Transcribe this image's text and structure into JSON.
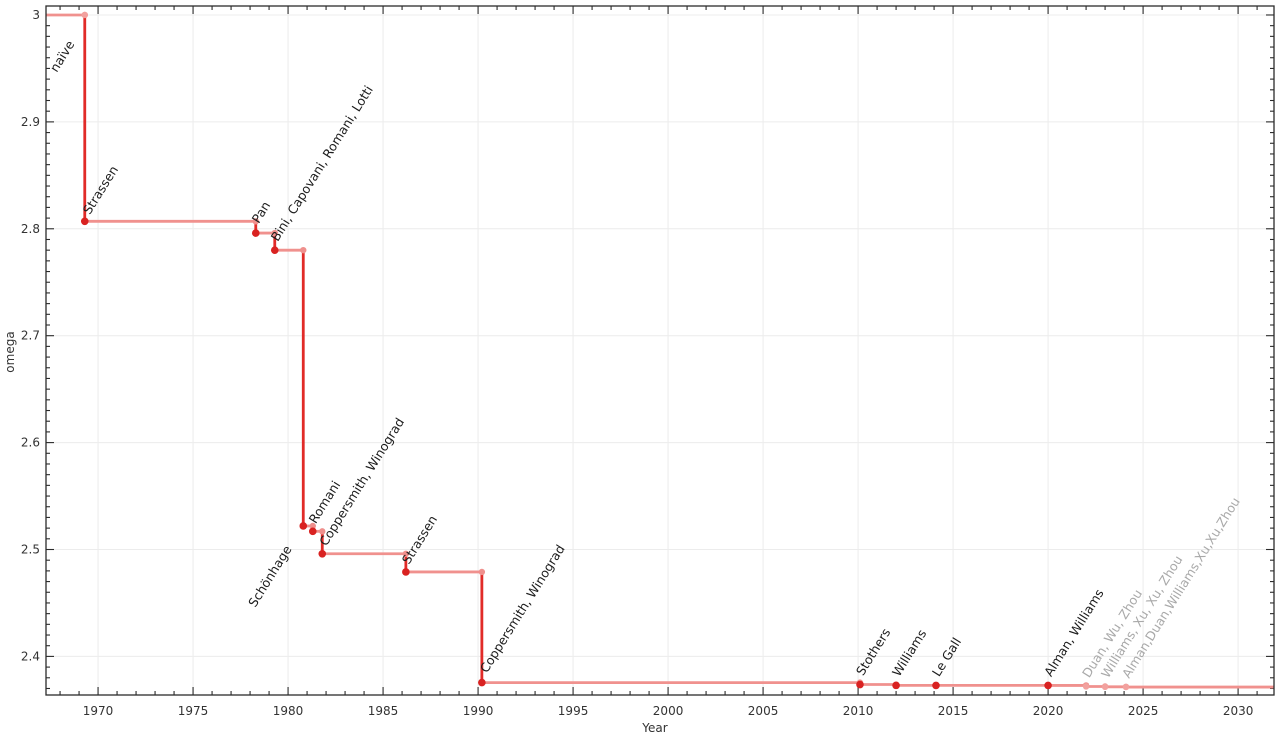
{
  "chart_data": {
    "type": "line",
    "title": "",
    "xlabel": "Year",
    "ylabel": "omega",
    "legend": "none",
    "grid": "major-both",
    "xlim": [
      1967.26,
      2031.89
    ],
    "ylim": [
      2.3639,
      3.0084
    ],
    "x_major_ticks": [
      1970,
      1975,
      1980,
      1985,
      1990,
      1995,
      2000,
      2005,
      2010,
      2015,
      2020,
      2025,
      2030
    ],
    "x_minor_step": 1,
    "y_major_ticks": [
      {
        "value": 2.4,
        "label": "2.4"
      },
      {
        "value": 2.5,
        "label": "2.5"
      },
      {
        "value": 2.6,
        "label": "2.6"
      },
      {
        "value": 2.7,
        "label": "2.7"
      },
      {
        "value": 2.8,
        "label": "2.8"
      },
      {
        "value": 2.9,
        "label": "2.9"
      },
      {
        "value": 3.0,
        "label": "3"
      }
    ],
    "y_minor_step": 0.01,
    "label_rotation_deg": -58,
    "colors": {
      "step_line": "#f0918e",
      "drop_line": "#e12b28",
      "point_dark": "#d92221",
      "point_light": "#f2a19e",
      "corner_point": "#ef908d",
      "label_dark": "#1d1d1d",
      "label_gray": "#a9a9a9",
      "grid": "#ececec",
      "axis": "#2b2b2b",
      "tick_label": "#333333"
    },
    "series": [
      {
        "name": "omega upper bound over time",
        "points": [
          {
            "label": "naïve",
            "year": 1969.3,
            "omega": 3.0,
            "dot": "light",
            "label_color": "dark",
            "label_dx": -28,
            "label_dy": 58
          },
          {
            "label": "Strassen",
            "year": 1969.3,
            "omega": 2.807,
            "dot": "dark",
            "label_color": "dark",
            "label_dx": 5,
            "label_dy": -6
          },
          {
            "label": "Pan",
            "year": 1978.3,
            "omega": 2.796,
            "dot": "dark",
            "label_color": "dark",
            "label_dx": 3,
            "label_dy": -9
          },
          {
            "label": "Bini, Capovani, Romani, Lotti",
            "year": 1979.3,
            "omega": 2.78,
            "dot": "dark",
            "label_color": "dark",
            "label_dx": 3,
            "label_dy": -8
          },
          {
            "label": "Schönhage",
            "year": 1980.8,
            "omega": 2.522,
            "dot": "dark",
            "label_color": "dark",
            "label_dx": -48,
            "label_dy": 82
          },
          {
            "label": "Romani",
            "year": 1981.3,
            "omega": 2.517,
            "dot": "dark",
            "label_color": "dark",
            "label_dx": 3,
            "label_dy": -7
          },
          {
            "label": "Coppersmith, Winograd",
            "year": 1981.8,
            "omega": 2.496,
            "dot": "dark",
            "label_color": "dark",
            "label_dx": 4,
            "label_dy": -7
          },
          {
            "label": "Strassen",
            "year": 1986.2,
            "omega": 2.479,
            "dot": "dark",
            "label_color": "dark",
            "label_dx": 3,
            "label_dy": -7
          },
          {
            "label": "Coppersmith, Winograd",
            "year": 1990.2,
            "omega": 2.3755,
            "dot": "dark",
            "label_color": "dark",
            "label_dx": 5,
            "label_dy": -9
          },
          {
            "label": "Stothers",
            "year": 2010.1,
            "omega": 2.3737,
            "dot": "dark",
            "label_color": "dark",
            "label_dx": 3,
            "label_dy": -8
          },
          {
            "label": "Williams",
            "year": 2012.0,
            "omega": 2.3729,
            "dot": "dark",
            "label_color": "dark",
            "label_dx": 3,
            "label_dy": -8
          },
          {
            "label": "Le Gall",
            "year": 2014.1,
            "omega": 2.37287,
            "dot": "dark",
            "label_color": "dark",
            "label_dx": 3,
            "label_dy": -8
          },
          {
            "label": "Alman, Williams",
            "year": 2020.0,
            "omega": 2.37286,
            "dot": "dark",
            "label_color": "dark",
            "label_dx": 3,
            "label_dy": -8
          },
          {
            "label": "Duan, Wu, Zhou",
            "year": 2022.0,
            "omega": 2.37187,
            "dot": "light",
            "label_color": "gray",
            "label_dx": 3,
            "label_dy": -8
          },
          {
            "label": "Williams, Xu, Xu, Zhou",
            "year": 2023.0,
            "omega": 2.37155,
            "dot": "light",
            "label_color": "gray",
            "label_dx": 3,
            "label_dy": -8
          },
          {
            "label": "Alman,Duan,Williams,Xu,Xu,Zhou",
            "year": 2024.1,
            "omega": 2.37134,
            "dot": "light",
            "label_color": "gray",
            "label_dx": 3,
            "label_dy": -8
          }
        ]
      }
    ]
  }
}
